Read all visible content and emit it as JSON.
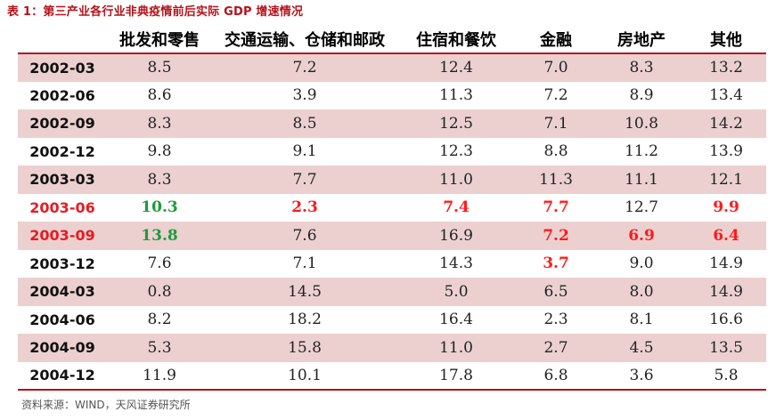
{
  "caption": "表 1：第三产业各行业非典疫情前后实际 GDP 增速情况",
  "columns": [
    "",
    "批发和零售",
    "交通运输、仓储和邮政",
    "住宿和餐饮",
    "金融",
    "房地产",
    "其他"
  ],
  "rows": [
    {
      "date": "2002-03",
      "values": [
        "8.5",
        "7.2",
        "12.4",
        "7.0",
        "8.3",
        "13.2"
      ],
      "shaded": true
    },
    {
      "date": "2002-06",
      "values": [
        "8.6",
        "3.9",
        "11.3",
        "7.2",
        "8.9",
        "13.4"
      ],
      "shaded": false
    },
    {
      "date": "2002-09",
      "values": [
        "8.3",
        "8.5",
        "12.5",
        "7.1",
        "10.8",
        "14.2"
      ],
      "shaded": true
    },
    {
      "date": "2002-12",
      "values": [
        "9.8",
        "9.1",
        "12.3",
        "8.8",
        "11.2",
        "13.9"
      ],
      "shaded": false
    },
    {
      "date": "2003-03",
      "values": [
        "8.3",
        "7.7",
        "11.0",
        "11.3",
        "11.1",
        "12.1"
      ],
      "shaded": true
    },
    {
      "date": "2003-06",
      "values": [
        "10.3",
        "2.3",
        "7.4",
        "7.7",
        "12.7",
        "9.9"
      ],
      "shaded": false
    },
    {
      "date": "2003-09",
      "values": [
        "13.8",
        "7.6",
        "16.9",
        "7.2",
        "6.9",
        "6.4"
      ],
      "shaded": true
    },
    {
      "date": "2003-12",
      "values": [
        "7.6",
        "7.1",
        "14.3",
        "3.7",
        "9.0",
        "14.9"
      ],
      "shaded": false
    },
    {
      "date": "2004-03",
      "values": [
        "0.8",
        "14.5",
        "5.0",
        "6.5",
        "8.0",
        "14.9"
      ],
      "shaded": true
    },
    {
      "date": "2004-06",
      "values": [
        "8.2",
        "18.2",
        "16.4",
        "2.3",
        "8.1",
        "16.6"
      ],
      "shaded": false
    },
    {
      "date": "2004-09",
      "values": [
        "5.3",
        "15.8",
        "11.0",
        "2.7",
        "4.5",
        "13.5"
      ],
      "shaded": true
    },
    {
      "date": "2004-12",
      "values": [
        "11.9",
        "10.1",
        "17.8",
        "6.8",
        "3.6",
        "5.8"
      ],
      "shaded": false
    }
  ],
  "highlights": {
    "red_date_rows": [
      5,
      6
    ],
    "red_cells": [
      [
        5,
        1
      ],
      [
        5,
        2
      ],
      [
        5,
        3
      ],
      [
        5,
        5
      ],
      [
        6,
        3
      ],
      [
        6,
        4
      ],
      [
        6,
        5
      ],
      [
        7,
        3
      ]
    ],
    "green_cells": [
      [
        5,
        0
      ],
      [
        6,
        0
      ]
    ],
    "colors": {
      "red": "#ff1a1a",
      "green": "#1a9e3a",
      "shade": "#ecd0d0",
      "rule": "#b5121b"
    }
  },
  "source": "资料来源：WIND，天风证券研究所"
}
